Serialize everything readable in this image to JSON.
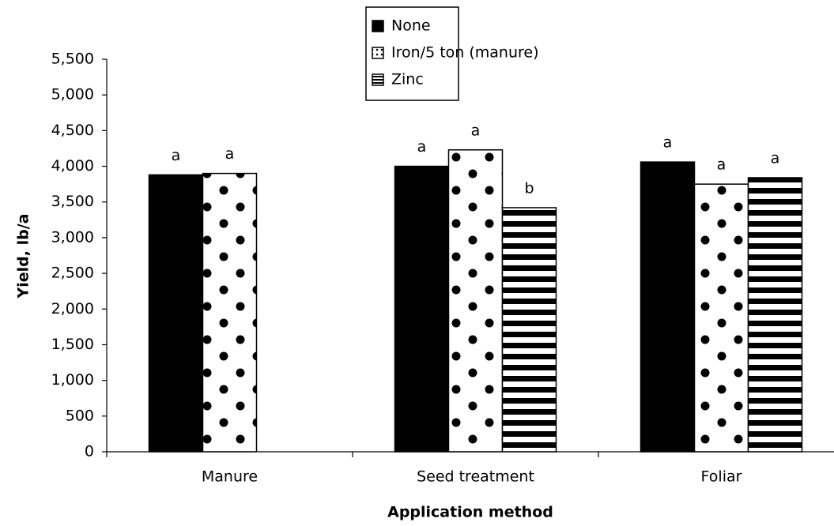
{
  "chart_data": {
    "type": "bar",
    "x_label": "Application method",
    "y_label": "Yield, lb/a",
    "categories": [
      "Manure",
      "Seed treatment",
      "Foliar"
    ],
    "series": [
      {
        "name": "None",
        "color": "#000000",
        "pattern": "solid",
        "values": [
          3880,
          4000,
          4060
        ],
        "letters": [
          "a",
          "a",
          "a"
        ]
      },
      {
        "name": "Iron/5 ton (manure)",
        "color": "#000000",
        "pattern": "dots",
        "values": [
          3900,
          4230,
          3750
        ],
        "letters": [
          "a",
          "a",
          "a"
        ]
      },
      {
        "name": "Zinc",
        "color": "#000000",
        "pattern": "stripes",
        "values": [
          null,
          3420,
          3840
        ],
        "letters": [
          null,
          "b",
          "a"
        ]
      }
    ],
    "ylim": [
      0,
      5500
    ],
    "yticks": [
      0,
      500,
      {
        "value": 1000,
        "label": "1,000"
      },
      {
        "value": 1500,
        "label": "1,500"
      },
      {
        "value": 2000,
        "label": "2,000"
      },
      {
        "value": 2500,
        "label": "2,500"
      },
      {
        "value": 3000,
        "label": "3,000"
      },
      {
        "value": 3500,
        "label": "3,500"
      },
      {
        "value": 4000,
        "label": "4,000"
      },
      {
        "value": 4500,
        "label": "4,500"
      },
      {
        "value": 5000,
        "label": "5,000"
      },
      {
        "value": 5500,
        "label": "5,500"
      }
    ],
    "grid": false,
    "legend": "top"
  }
}
